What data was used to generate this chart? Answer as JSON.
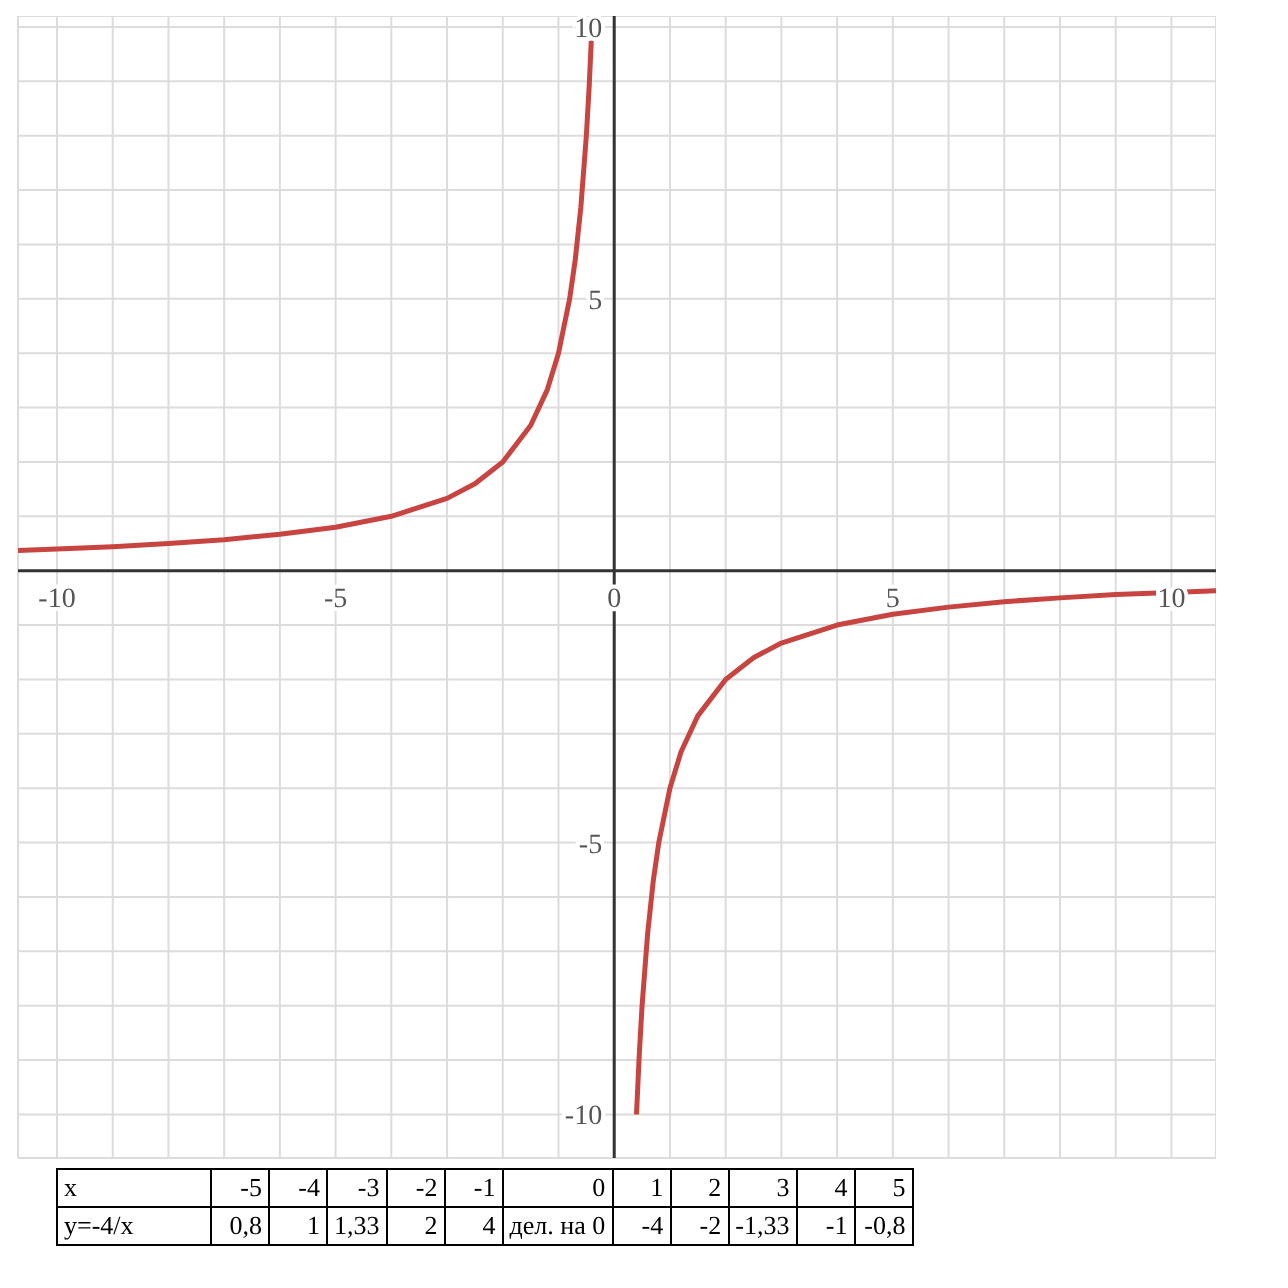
{
  "chart_data": {
    "type": "line",
    "xlim": [
      -10.7,
      10.8
    ],
    "ylim": [
      -10.8,
      10.2
    ],
    "xticks": [
      -10,
      {
        "value": -9,
        "label": null
      },
      {
        "value": -8,
        "label": null
      },
      {
        "value": -7,
        "label": null
      },
      {
        "value": -6,
        "label": null
      },
      -5,
      {
        "value": -4,
        "label": null
      },
      {
        "value": -3,
        "label": null
      },
      {
        "value": -2,
        "label": null
      },
      {
        "value": -1,
        "label": null
      },
      0,
      {
        "value": 1,
        "label": null
      },
      {
        "value": 2,
        "label": null
      },
      {
        "value": 3,
        "label": null
      },
      {
        "value": 4,
        "label": null
      },
      5,
      {
        "value": 6,
        "label": null
      },
      {
        "value": 7,
        "label": null
      },
      {
        "value": 8,
        "label": null
      },
      {
        "value": 9,
        "label": null
      },
      10
    ],
    "yticks": [
      -10,
      {
        "value": -9,
        "label": null
      },
      {
        "value": -8,
        "label": null
      },
      {
        "value": -7,
        "label": null
      },
      {
        "value": -6,
        "label": null
      },
      -5,
      {
        "value": -4,
        "label": null
      },
      {
        "value": -3,
        "label": null
      },
      {
        "value": -2,
        "label": null
      },
      {
        "value": -1,
        "label": null
      },
      {
        "value": 1,
        "label": null
      },
      {
        "value": 2,
        "label": null
      },
      {
        "value": 3,
        "label": null
      },
      {
        "value": 4,
        "label": null
      },
      5,
      {
        "value": 6,
        "label": null
      },
      {
        "value": 7,
        "label": null
      },
      {
        "value": 8,
        "label": null
      },
      {
        "value": 9,
        "label": null
      },
      10
    ],
    "grid": true,
    "marker": "none",
    "line_style": "solid",
    "annotations": [
      "x",
      "-5",
      "-4",
      "-3",
      "-2",
      "-1",
      "0",
      "1",
      "2",
      "3",
      "4",
      "5",
      "y=-4/x",
      "0,8",
      "1",
      "1,33",
      "2",
      "4",
      "дел. на 0",
      "-4",
      "-2",
      "-1,33",
      "-1",
      "-0,8"
    ],
    "series": [
      {
        "color": "#c74440",
        "x": [
          -10.7,
          -10,
          -9,
          -8,
          -7,
          -6,
          -5,
          -4,
          -3,
          -2.5,
          -2,
          -1.5,
          -1.2,
          -1,
          -0.8,
          -0.7,
          -0.6,
          -0.5,
          -0.45,
          -0.4,
          0,
          0.4,
          0.45,
          0.5,
          0.6,
          0.7,
          0.8,
          1,
          1.2,
          1.5,
          2,
          2.5,
          3,
          4,
          5,
          6,
          7,
          8,
          9,
          10,
          10.8
        ],
        "values": [
          0.37,
          0.4,
          0.44,
          0.5,
          0.57,
          0.67,
          0.8,
          1,
          1.33,
          1.6,
          2,
          2.67,
          3.33,
          4,
          5,
          5.71,
          6.67,
          8,
          8.89,
          10,
          null,
          -10,
          -8.89,
          -8,
          -6.67,
          -5.71,
          -5,
          -4,
          -3.33,
          -2.67,
          -2,
          -1.6,
          -1.33,
          -1,
          -0.8,
          -0.67,
          -0.57,
          -0.5,
          -0.44,
          -0.4,
          -0.37
        ]
      }
    ]
  }
}
